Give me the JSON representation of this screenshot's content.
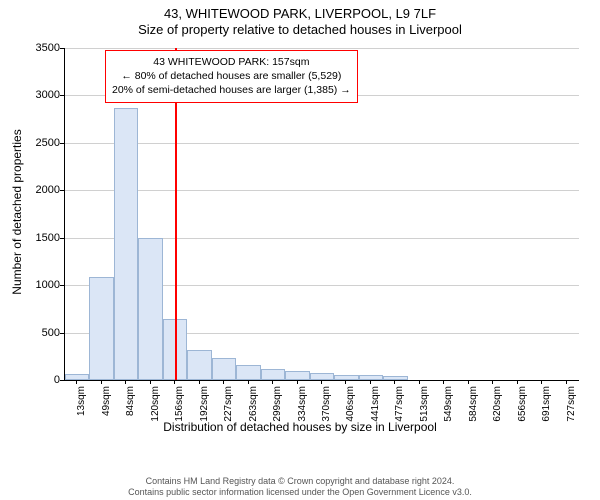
{
  "title": {
    "line1": "43, WHITEWOOD PARK, LIVERPOOL, L9 7LF",
    "line2": "Size of property relative to detached houses in Liverpool"
  },
  "y_axis": {
    "label": "Number of detached properties",
    "min": 0,
    "max": 3500,
    "tick_step": 500,
    "ticks": [
      0,
      500,
      1000,
      1500,
      2000,
      2500,
      3000,
      3500
    ],
    "label_fontsize": 12
  },
  "x_axis": {
    "label": "Distribution of detached houses by size in Liverpool",
    "categories": [
      "13sqm",
      "49sqm",
      "84sqm",
      "120sqm",
      "156sqm",
      "192sqm",
      "227sqm",
      "263sqm",
      "299sqm",
      "334sqm",
      "370sqm",
      "406sqm",
      "441sqm",
      "477sqm",
      "513sqm",
      "549sqm",
      "584sqm",
      "620sqm",
      "656sqm",
      "691sqm",
      "727sqm"
    ],
    "label_fontsize": 12
  },
  "chart": {
    "type": "histogram",
    "values": [
      60,
      1090,
      2870,
      1500,
      640,
      320,
      230,
      160,
      120,
      90,
      70,
      50,
      50,
      40,
      0,
      0,
      0,
      0,
      0,
      0,
      0
    ],
    "bar_fill": "#dbe6f6",
    "bar_border": "#9db6d5",
    "background": "#ffffff",
    "grid_color": "#d0d0d0",
    "bar_width_ratio": 1.0,
    "reference_line": {
      "position_sqm": 157,
      "color": "#ff0000",
      "width": 2
    }
  },
  "info_box": {
    "border_color": "#ff0000",
    "lines": [
      "43 WHITEWOOD PARK: 157sqm",
      "← 80% of detached houses are smaller (5,529)",
      "20% of semi-detached houses are larger (1,385) →"
    ]
  },
  "footer": {
    "line1": "Contains HM Land Registry data © Crown copyright and database right 2024.",
    "line2": "Contains public sector information licensed under the Open Government Licence v3.0."
  }
}
